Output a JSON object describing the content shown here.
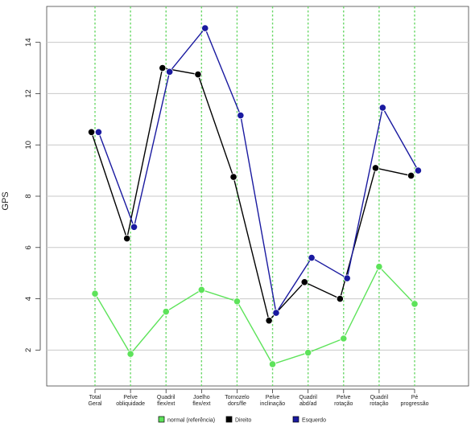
{
  "chart_data": {
    "type": "line",
    "title": "",
    "ylabel": "GPS",
    "xlabel": "",
    "ylim": [
      0.6,
      15.4
    ],
    "yticks": [
      2,
      4,
      6,
      8,
      10,
      12,
      14
    ],
    "grid": true,
    "legend_position": "bottom",
    "categories": [
      [
        "Total",
        "Geral"
      ],
      [
        "Pelve",
        "obliquidade"
      ],
      [
        "Quadril",
        "flex/ext"
      ],
      [
        "Joelho",
        "flex/ext"
      ],
      [
        "Tornozelo",
        "dors/fle"
      ],
      [
        "Pelve",
        "inclinação"
      ],
      [
        "Quadril",
        "abd/ad"
      ],
      [
        "Pelve",
        "rotação"
      ],
      [
        "Quadril",
        "rotação"
      ],
      [
        "Pé",
        "progressão"
      ]
    ],
    "series": [
      {
        "name": "normal (referência)",
        "color": "#5de35a",
        "x": [
          1,
          2,
          3,
          4,
          5,
          6,
          7,
          8,
          9,
          10
        ],
        "values": [
          4.2,
          1.85,
          3.5,
          4.35,
          3.9,
          1.45,
          1.9,
          2.45,
          5.25,
          3.8
        ]
      },
      {
        "name": "Direito",
        "color": "#000000",
        "x": [
          0.9,
          1.9,
          2.9,
          3.9,
          4.9,
          5.9,
          6.9,
          7.9,
          8.9,
          9.9
        ],
        "values": [
          10.5,
          6.35,
          13.0,
          12.75,
          8.75,
          3.15,
          4.65,
          4.0,
          9.1,
          8.8
        ]
      },
      {
        "name": "Esquerdo",
        "color": "#1a1aa0",
        "x": [
          1.1,
          2.1,
          3.1,
          4.1,
          5.1,
          6.1,
          7.1,
          8.1,
          9.1,
          10.1
        ],
        "values": [
          10.5,
          6.8,
          12.85,
          14.55,
          11.15,
          3.45,
          5.6,
          4.8,
          11.45,
          9.0
        ]
      }
    ]
  }
}
